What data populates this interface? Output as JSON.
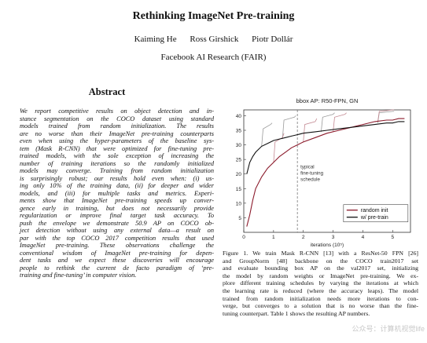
{
  "paper": {
    "title": "Rethinking ImageNet Pre-training",
    "authors": [
      "Kaiming He",
      "Ross Girshick",
      "Piotr Dollár"
    ],
    "affiliation": "Facebook AI Research (FAIR)"
  },
  "abstract": {
    "heading": "Abstract",
    "lines": [
      "We report competitive results on object detection and in-",
      "stance segmentation on the COCO dataset using standard",
      "models trained from random initialization. The results",
      "are no worse than their ImageNet pre-training counterparts",
      "even when using the hyper-parameters of the baseline sys-",
      "tem (Mask R-CNN) that were optimized for fine-tuning pre-",
      "trained models, with the sole exception of increasing the",
      "number of training iterations so the randomly initialized",
      "models may converge. Training from random initialization",
      "is surprisingly robust; our results hold even when: (i) us-",
      "ing only 10% of the training data, (ii) for deeper and wider",
      "models, and (iii) for multiple tasks and metrics. Experi-",
      "ments show that ImageNet pre-training speeds up conver-",
      "gence early in training, but does not necessarily provide",
      "regularization or improve final target task accuracy. To",
      "push the envelope we demonstrate 50.9 AP on COCO ob-",
      "ject detection without using any external data—a result on",
      "par with the top COCO 2017 competition results that used",
      "ImageNet pre-training. These observations challenge the",
      "conventional wisdom of ImageNet pre-training for depen-",
      "dent tasks and we expect these discoveries will encourage",
      "people to rethink the current de facto paradigm of ‘pre-",
      "training and fine-tuning’ in computer vision."
    ]
  },
  "chart_data": {
    "type": "line",
    "title": "bbox AP: R50-FPN, GN",
    "xlabel": "iterations (10⁵)",
    "xlim": [
      0,
      5.6
    ],
    "ylim": [
      0,
      42
    ],
    "xticks": [
      0,
      1,
      2,
      3,
      4,
      5
    ],
    "yticks": [
      5,
      10,
      15,
      20,
      25,
      30,
      35,
      40
    ],
    "grid": false,
    "legend": "bottom-right",
    "annotation": [
      "typical",
      "fine-tuning",
      "schedule"
    ],
    "annotation_line_x": 1.8,
    "series": [
      {
        "name": "random init",
        "color": "#8b1a2b",
        "x": [
          0.1,
          0.2,
          0.3,
          0.4,
          0.6,
          0.8,
          1.0,
          1.2,
          1.4,
          1.6,
          1.8,
          2.0,
          2.4,
          2.8,
          3.2,
          3.6,
          4.0,
          4.4,
          4.8,
          5.0,
          5.2,
          5.4
        ],
        "y": [
          2,
          6,
          11,
          15,
          19,
          22,
          24,
          26,
          27.5,
          29,
          30,
          31,
          32.5,
          34,
          35,
          36,
          37,
          38,
          38.5,
          38.5,
          39,
          39
        ]
      },
      {
        "name": "w/ pre-train",
        "color": "#111111",
        "x": [
          0.1,
          0.2,
          0.3,
          0.4,
          0.6,
          0.8,
          1.0,
          1.2,
          1.4,
          1.6,
          1.8,
          2.0,
          2.4,
          2.8,
          3.2,
          3.6,
          4.0,
          4.4,
          4.8,
          5.0,
          5.2,
          5.4
        ],
        "y": [
          20,
          24,
          26,
          27.5,
          29.5,
          30.5,
          31.5,
          32,
          32.5,
          33,
          33.5,
          34,
          34.5,
          35,
          35.5,
          36,
          36.5,
          37,
          37.5,
          37.5,
          38,
          38
        ]
      }
    ],
    "step_curves_random_init": [
      [
        [
          1.0,
          24
        ],
        [
          1.05,
          31
        ],
        [
          1.3,
          32.5
        ],
        [
          1.35,
          34
        ]
      ],
      [
        [
          2.0,
          31
        ],
        [
          2.05,
          37
        ],
        [
          2.4,
          38
        ],
        [
          2.45,
          39
        ]
      ],
      [
        [
          3.0,
          34.5
        ],
        [
          3.05,
          39.5
        ],
        [
          3.4,
          40.5
        ],
        [
          3.45,
          41
        ]
      ],
      [
        [
          4.5,
          38
        ],
        [
          4.55,
          41.5
        ],
        [
          5.0,
          42
        ],
        [
          5.05,
          42
        ]
      ]
    ],
    "step_curves_pretrain": [
      [
        [
          0.6,
          29.5
        ],
        [
          0.65,
          35.5
        ],
        [
          0.9,
          37
        ],
        [
          0.95,
          37.5
        ]
      ],
      [
        [
          1.3,
          32
        ],
        [
          1.35,
          38.5
        ],
        [
          1.7,
          39.5
        ],
        [
          1.75,
          40
        ]
      ],
      [
        [
          2.6,
          34.5
        ],
        [
          2.65,
          39.5
        ],
        [
          3.0,
          40.5
        ],
        [
          3.05,
          41
        ]
      ],
      [
        [
          4.5,
          37.5
        ],
        [
          4.55,
          41
        ],
        [
          5.0,
          41.5
        ],
        [
          5.05,
          41.5
        ]
      ]
    ]
  },
  "caption": {
    "lines": [
      "Figure 1. We train Mask R-CNN [13] with a ResNet-50 FPN [26]",
      "and GroupNorm [48] backbone on the COCO train2017 set",
      "and evaluate bounding box AP on the val2017 set, initializing",
      "the model by random weights or ImageNet pre-training. We ex-",
      "plore different training schedules by varying the iterations at which",
      "the learning rate is reduced (where the accuracy leaps). The model",
      "trained from random initialization needs more iterations to con-",
      "verge, but converges to a solution that is no worse than the fine-",
      "tuning counterpart. Table 1 shows the resulting AP numbers."
    ]
  },
  "watermark": "公众号：计算机视觉life"
}
